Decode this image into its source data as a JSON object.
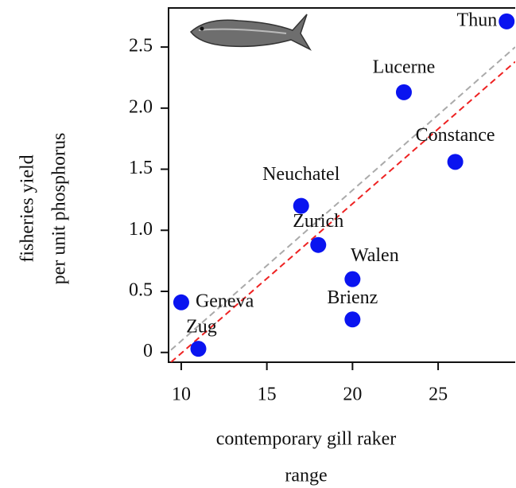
{
  "chart_data": {
    "type": "scatter",
    "x_label": [
      "contemporary gill raker",
      "range"
    ],
    "y_label": [
      "fisheries yield",
      "per unit phosphorus"
    ],
    "xlim": [
      9.26,
      29.5
    ],
    "ylim": [
      -0.08,
      2.82
    ],
    "xticks": [
      10,
      15,
      20,
      25
    ],
    "yticks": [
      {
        "value": 0,
        "label": "0"
      },
      0.5,
      {
        "value": 1,
        "label": "1.0"
      },
      1.5,
      {
        "value": 2,
        "label": "2.0"
      },
      2.5
    ],
    "color": "#0a14f0",
    "labels": [
      "Thun",
      "Lucerne",
      "Constance",
      "Neuchatel",
      "Zurich",
      "Walen",
      "Brienz",
      "Geneva",
      "Zug"
    ],
    "x": [
      29,
      23,
      26,
      17,
      18,
      20,
      20,
      10,
      11
    ],
    "values": [
      2.71,
      2.13,
      1.56,
      1.2,
      0.88,
      0.6,
      0.27,
      0.41,
      0.03
    ],
    "lines": [
      {
        "color": "#aaaaaa",
        "x": [
          9.4,
          29.5
        ],
        "y": [
          0.02,
          2.5
        ]
      },
      {
        "color": "#ee2222",
        "x": [
          9.4,
          29.5
        ],
        "y": [
          -0.08,
          2.38
        ]
      }
    ]
  }
}
